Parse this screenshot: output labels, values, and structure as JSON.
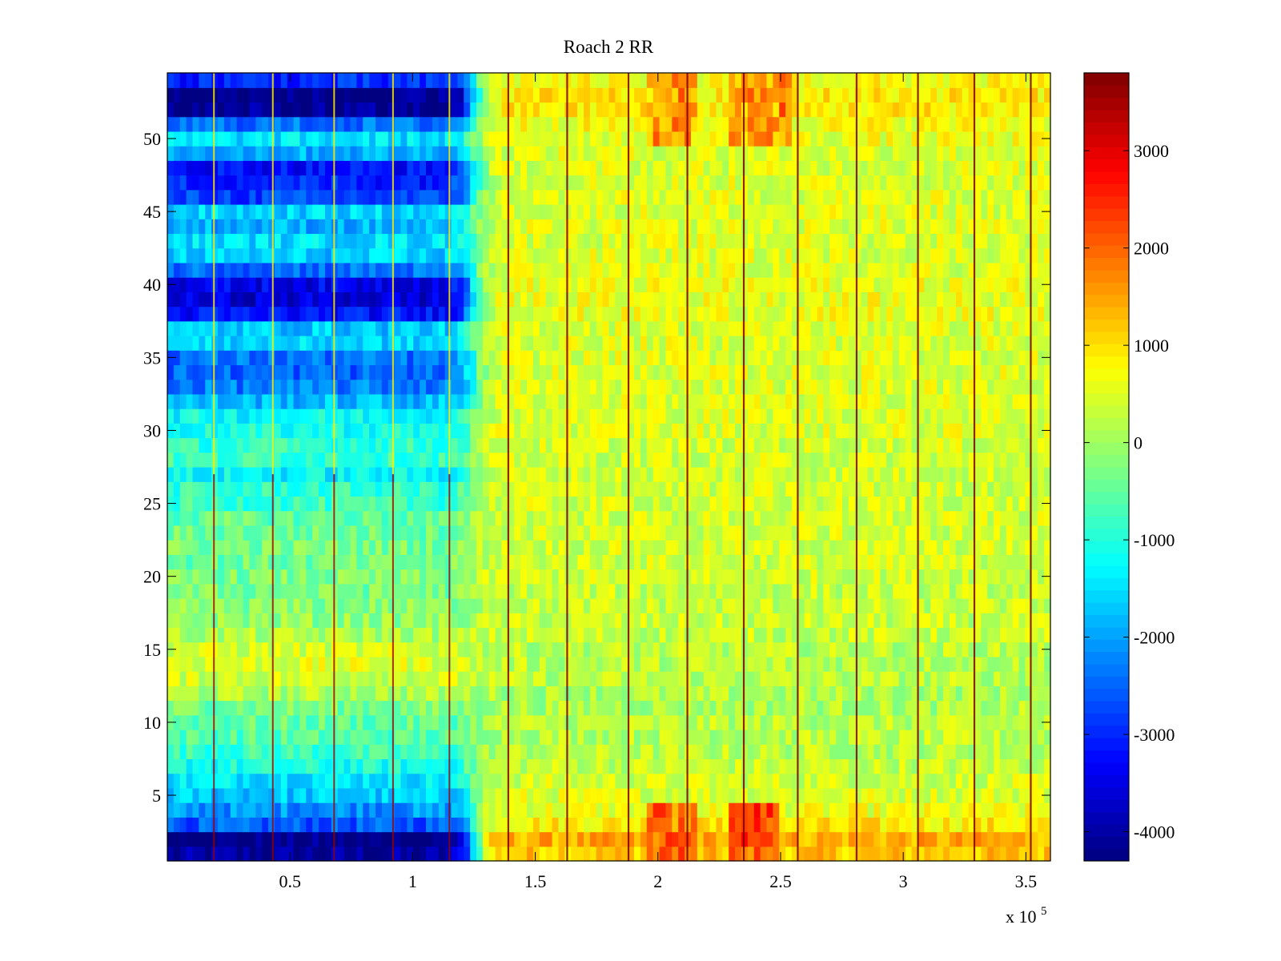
{
  "chart_data": {
    "type": "heatmap",
    "title": "Roach 2 RR",
    "xlabel": "",
    "ylabel": "",
    "x_multiplier_label": "x 10",
    "x_multiplier_exponent": "5",
    "xlim": [
      0,
      3.6
    ],
    "ylim": [
      0.5,
      54.5
    ],
    "x_ticks": [
      "0.5",
      "1",
      "1.5",
      "2",
      "2.5",
      "3",
      "3.5"
    ],
    "y_ticks": [
      "5",
      "10",
      "15",
      "20",
      "25",
      "30",
      "35",
      "40",
      "45",
      "50"
    ],
    "colorbar": {
      "colormap": "jet",
      "clim": [
        -4300,
        3800
      ],
      "ticks": [
        "3000",
        "2000",
        "1000",
        "0",
        "-1000",
        "-2000",
        "-3000",
        "-4000"
      ]
    },
    "rows": 54,
    "transition_x": 1.25,
    "row_levels_left": [
      -4100,
      -4300,
      -2600,
      -2100,
      -1700,
      -1400,
      -1100,
      -800,
      -600,
      -500,
      -300,
      100,
      400,
      500,
      400,
      100,
      -100,
      -200,
      -300,
      -300,
      -400,
      -300,
      -400,
      -500,
      -800,
      -900,
      -1300,
      -800,
      -900,
      -1100,
      -1200,
      -1800,
      -2300,
      -2500,
      -2400,
      -1600,
      -1700,
      -3200,
      -3600,
      -3400,
      -2400,
      -1700,
      -1500,
      -1900,
      -1600,
      -2800,
      -3000,
      -3200,
      -1900,
      -1500,
      -2400,
      -4200,
      -4300,
      -3000
    ],
    "row_levels_right": [
      1200,
      1400,
      900,
      600,
      500,
      400,
      300,
      200,
      200,
      200,
      100,
      100,
      200,
      200,
      200,
      300,
      300,
      300,
      300,
      400,
      400,
      400,
      400,
      400,
      400,
      400,
      400,
      400,
      400,
      500,
      500,
      500,
      500,
      500,
      500,
      500,
      500,
      600,
      600,
      600,
      500,
      500,
      500,
      500,
      500,
      500,
      500,
      500,
      500,
      600,
      700,
      900,
      900,
      700
    ],
    "vertical_lines_x": [
      0.19,
      0.43,
      0.68,
      0.92,
      1.15,
      1.39,
      1.63,
      1.88,
      2.12,
      2.35,
      2.57,
      2.81,
      3.06,
      3.29,
      3.52
    ],
    "bright_hotspots": [
      {
        "x": [
          1.95,
          2.15
        ],
        "rows": [
          1,
          4
        ],
        "level": 2400
      },
      {
        "x": [
          2.3,
          2.5
        ],
        "rows": [
          1,
          4
        ],
        "level": 2700
      },
      {
        "x": [
          1.95,
          2.15
        ],
        "rows": [
          50,
          54
        ],
        "level": 1900
      },
      {
        "x": [
          2.3,
          2.55
        ],
        "rows": [
          50,
          54
        ],
        "level": 2000
      }
    ]
  }
}
